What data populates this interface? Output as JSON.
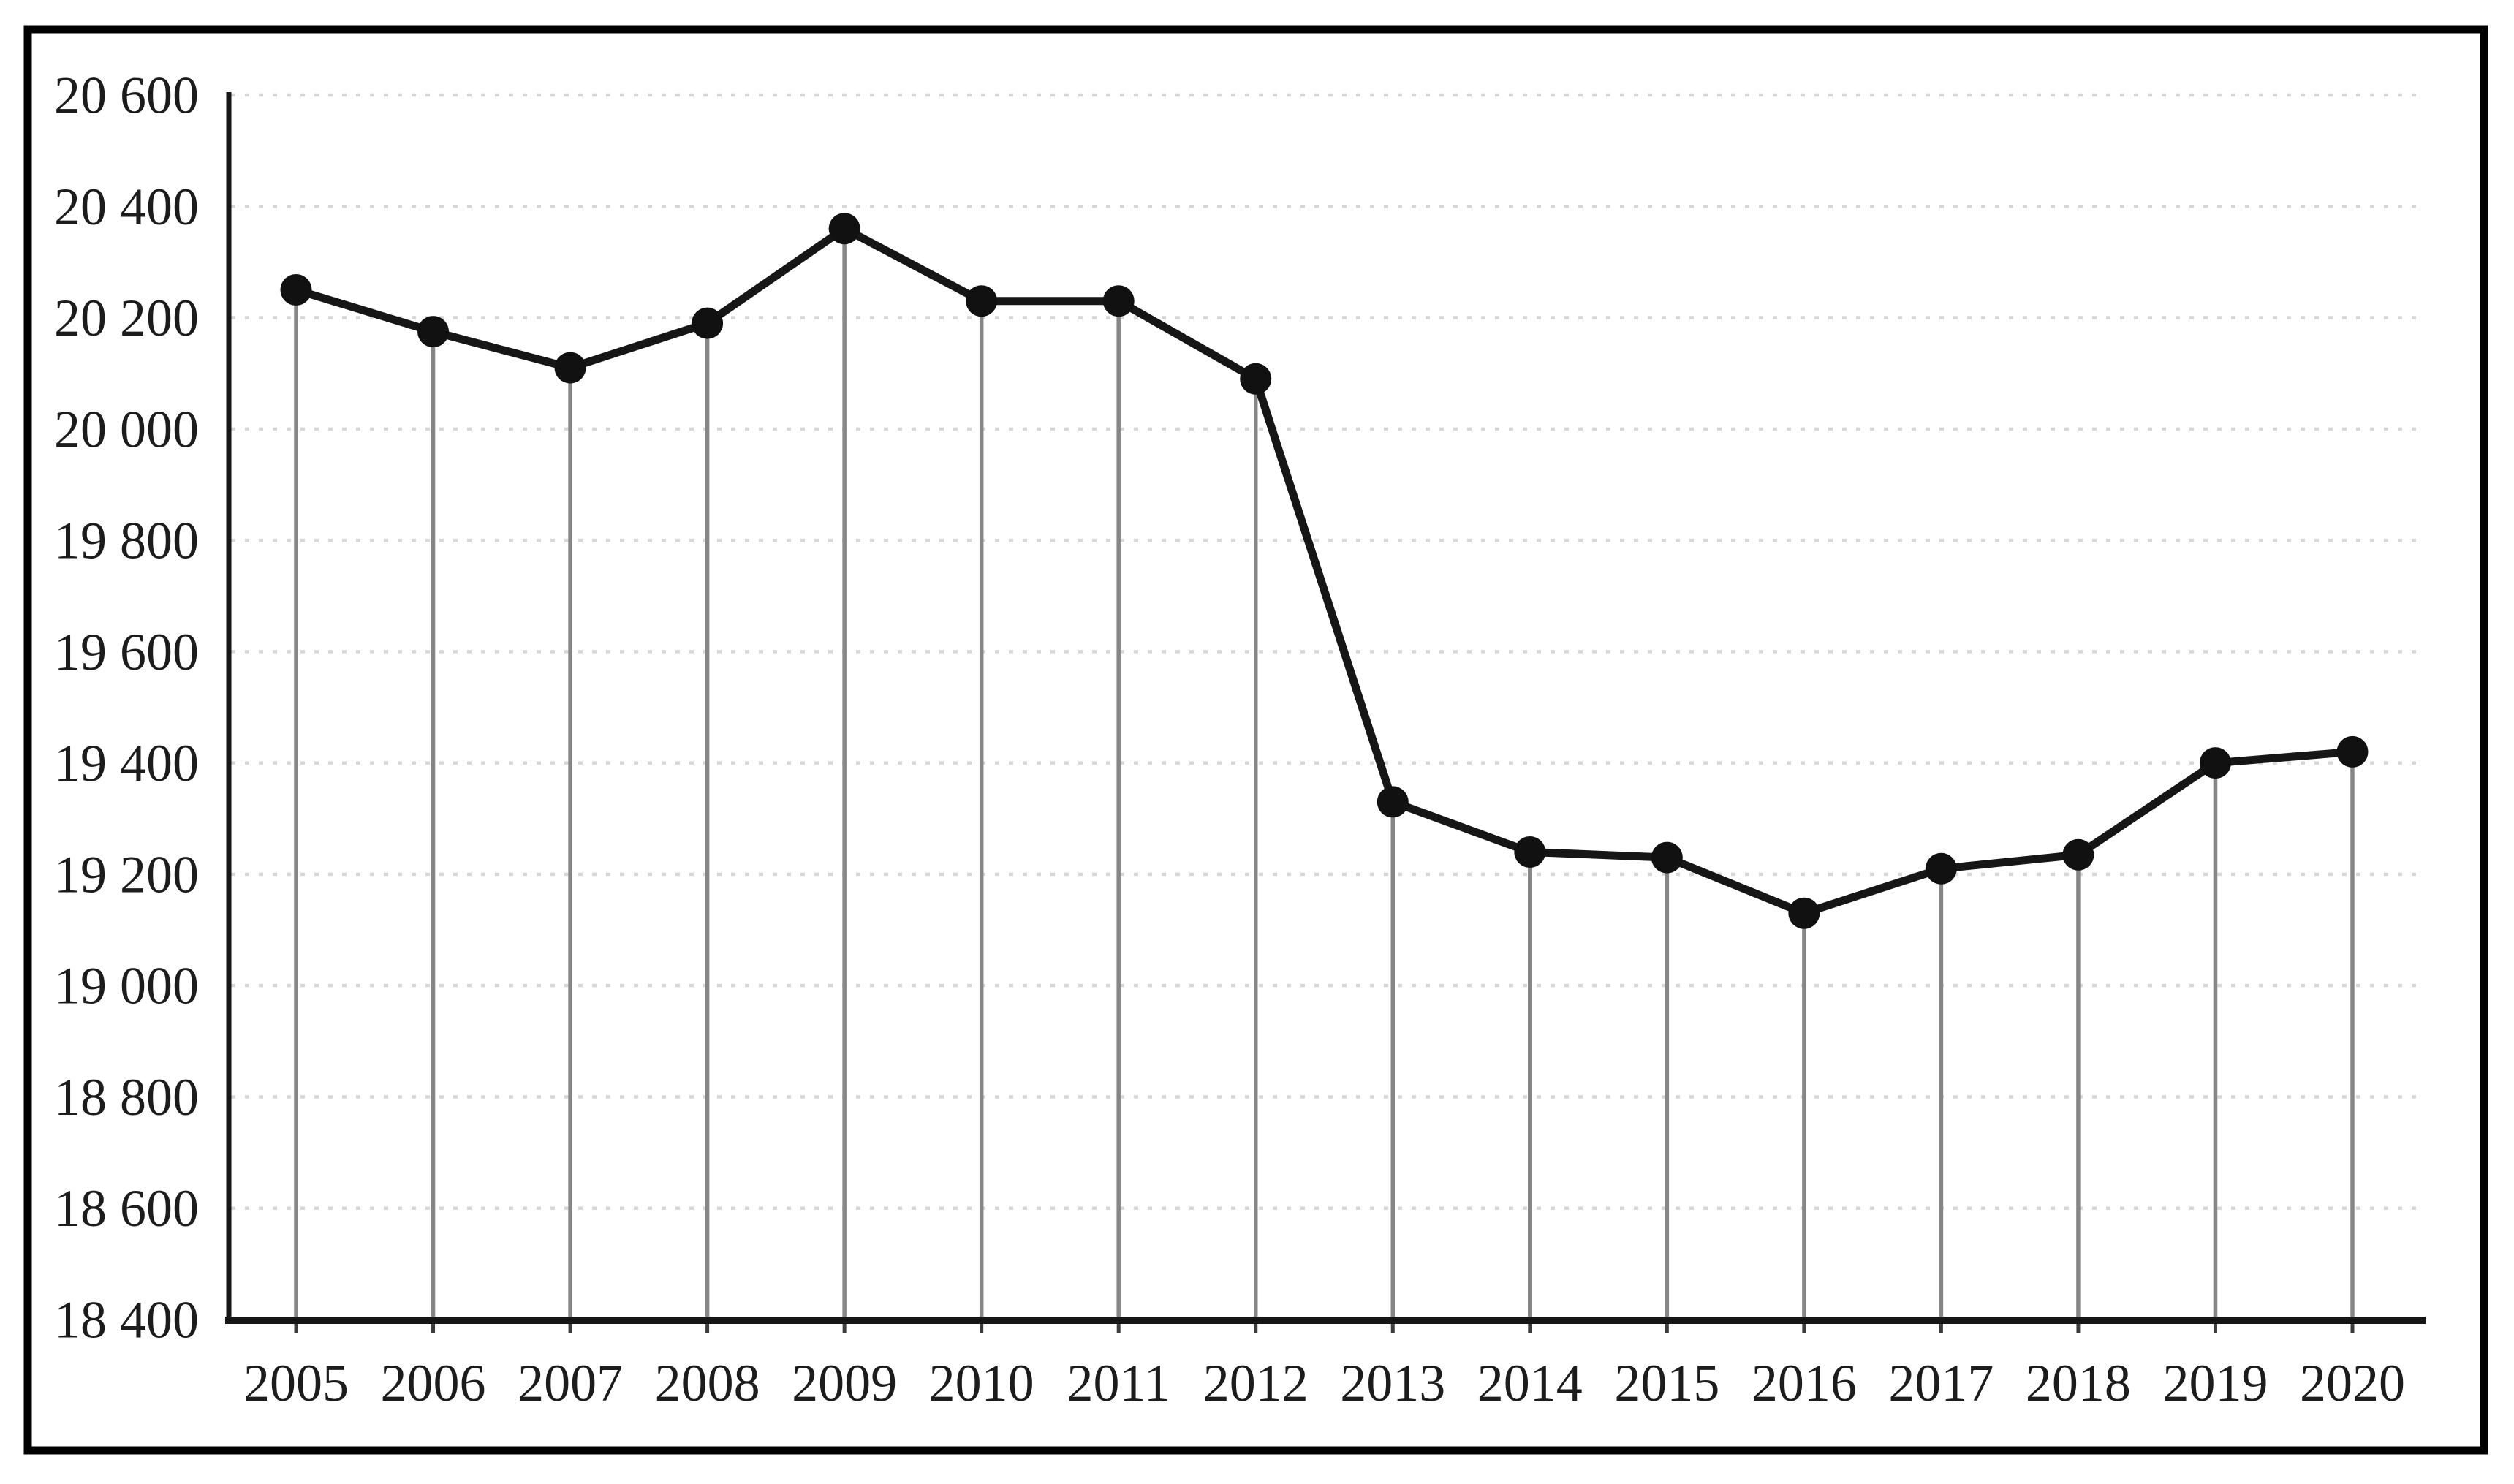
{
  "chart_data": {
    "type": "line",
    "title": "",
    "categories": [
      "2005",
      "2006",
      "2007",
      "2008",
      "2009",
      "2010",
      "2011",
      "2012",
      "2013",
      "2014",
      "2015",
      "2016",
      "2017",
      "2018",
      "2019",
      "2020"
    ],
    "series": [
      {
        "name": "value",
        "values": [
          20250,
          20175,
          20110,
          20190,
          20360,
          20230,
          20230,
          20090,
          19330,
          19240,
          19230,
          19130,
          19210,
          19235,
          19400,
          19420
        ]
      }
    ],
    "xlabel": "",
    "ylabel": "",
    "ylim": [
      18400,
      20600
    ],
    "ytick_step": 200,
    "ytick_labels": [
      "20 600",
      "20 400",
      "20 200",
      "20 000",
      "19 800",
      "19 600",
      "19 400",
      "19 200",
      "19 000",
      "18 800",
      "18 600",
      "18 400"
    ],
    "grid": "horizontal-dotted",
    "legend_position": "none",
    "marker": "filled-circle",
    "drop_lines": true,
    "outer_border": true
  },
  "style": {
    "background_color": "#ffffff",
    "frame_color": "#000000",
    "axis_color": "#161616",
    "line_color": "#161616",
    "marker_color": "#111111",
    "drop_line_color": "#868686",
    "gridline_color": "#d7d7d7",
    "tick_color": "#3c3c3c",
    "label_color": "#1c1c1c"
  }
}
